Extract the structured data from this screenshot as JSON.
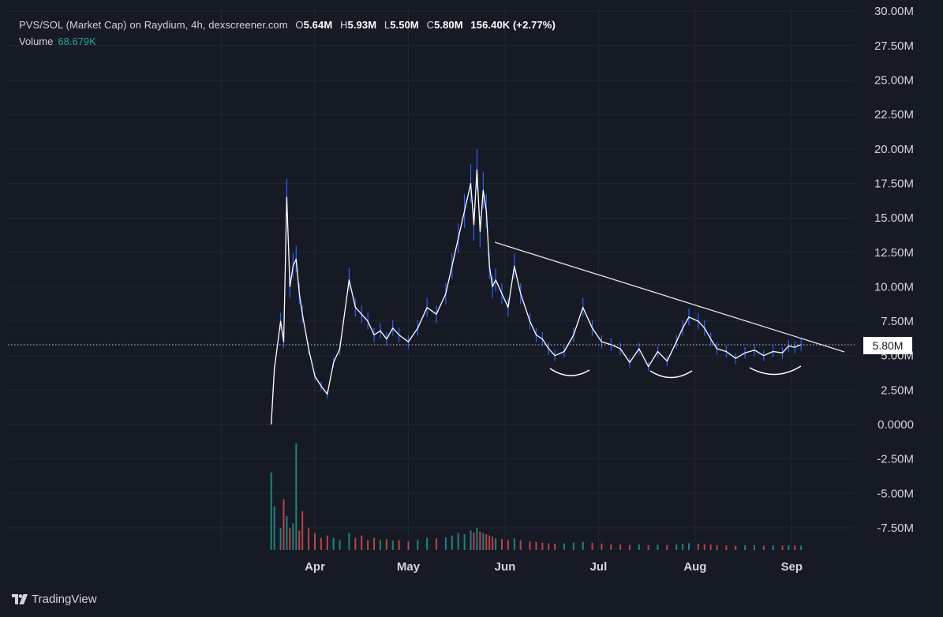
{
  "header": {
    "symbol": "PVS/SOL (Market Cap) on Raydium, 4h, dexscreener.com",
    "open_label": "O",
    "open_value": "5.64M",
    "high_label": "H",
    "high_value": "5.93M",
    "low_label": "L",
    "low_value": "5.50M",
    "close_label": "C",
    "close_value": "5.80M",
    "change": "156.40K (+2.77%)"
  },
  "volume": {
    "label": "Volume",
    "value": "68.679K"
  },
  "price_tag": "5.80M",
  "brand": {
    "name": "TradingView",
    "icon": "tradingview-logo-icon"
  },
  "colors": {
    "background": "#161a25",
    "grid": "#232733",
    "price_line": "#ffffff",
    "price_wick": "#2962ff",
    "volume_up": "#26a69a",
    "volume_down": "#ef5350"
  },
  "chart_data": {
    "type": "line",
    "title": "PVS/SOL (Market Cap) on Raydium, 4h, dexscreener.com",
    "y_tick_labels": [
      "30.00M",
      "27.50M",
      "25.00M",
      "22.50M",
      "20.00M",
      "17.50M",
      "15.00M",
      "12.50M",
      "10.00M",
      "7.50M",
      "5.00M",
      "2.50M",
      "0.0000",
      "-2.50M",
      "-5.00M",
      "-7.50M"
    ],
    "ylim": [
      -9000000,
      30000000
    ],
    "x_tick_labels": [
      "Apr",
      "May",
      "Jun",
      "Jul",
      "Aug",
      "Sep"
    ],
    "x_range": [
      "2024-03-05",
      "2024-09-25"
    ],
    "grid": true,
    "series": [
      {
        "name": "",
        "x": [
          "2024-03-18",
          "2024-03-19",
          "2024-03-21",
          "2024-03-22",
          "2024-03-23",
          "2024-03-24",
          "2024-03-25",
          "2024-03-26",
          "2024-03-27",
          "2024-03-28",
          "2024-03-30",
          "2024-04-01",
          "2024-04-03",
          "2024-04-05",
          "2024-04-07",
          "2024-04-09",
          "2024-04-12",
          "2024-04-14",
          "2024-04-16",
          "2024-04-18",
          "2024-04-20",
          "2024-04-22",
          "2024-04-24",
          "2024-04-26",
          "2024-04-28",
          "2024-05-01",
          "2024-05-04",
          "2024-05-07",
          "2024-05-10",
          "2024-05-13",
          "2024-05-15",
          "2024-05-17",
          "2024-05-19",
          "2024-05-21",
          "2024-05-22",
          "2024-05-23",
          "2024-05-24",
          "2024-05-25",
          "2024-05-26",
          "2024-05-27",
          "2024-05-28",
          "2024-05-29",
          "2024-05-31",
          "2024-06-02",
          "2024-06-04",
          "2024-06-06",
          "2024-06-09",
          "2024-06-11",
          "2024-06-13",
          "2024-06-15",
          "2024-06-17",
          "2024-06-20",
          "2024-06-23",
          "2024-06-26",
          "2024-06-29",
          "2024-07-02",
          "2024-07-05",
          "2024-07-08",
          "2024-07-11",
          "2024-07-14",
          "2024-07-17",
          "2024-07-20",
          "2024-07-23",
          "2024-07-26",
          "2024-07-28",
          "2024-07-30",
          "2024-08-02",
          "2024-08-04",
          "2024-08-06",
          "2024-08-08",
          "2024-08-11",
          "2024-08-14",
          "2024-08-17",
          "2024-08-20",
          "2024-08-23",
          "2024-08-26",
          "2024-08-29",
          "2024-08-31",
          "2024-09-02",
          "2024-09-04"
        ],
        "y": [
          0,
          4000000,
          7500000,
          6000000,
          16500000,
          10000000,
          11500000,
          12000000,
          9500000,
          8000000,
          5500000,
          3500000,
          2800000,
          2200000,
          4500000,
          5500000,
          10500000,
          8500000,
          8000000,
          7500000,
          6500000,
          6800000,
          6200000,
          7000000,
          6500000,
          6000000,
          7000000,
          8500000,
          8000000,
          9500000,
          11500000,
          13500000,
          15500000,
          17500000,
          14500000,
          18500000,
          14000000,
          17000000,
          15500000,
          11500000,
          10000000,
          10500000,
          9500000,
          8500000,
          11500000,
          9500000,
          7500000,
          6500000,
          6200000,
          5500000,
          5000000,
          5300000,
          6500000,
          8500000,
          7000000,
          6000000,
          5800000,
          5500000,
          4500000,
          5500000,
          4200000,
          5300000,
          4600000,
          6000000,
          7000000,
          7800000,
          7500000,
          7000000,
          6200000,
          5500000,
          5300000,
          4800000,
          5200000,
          5400000,
          5000000,
          5300000,
          5200000,
          5700000,
          5600000,
          5800000
        ]
      }
    ],
    "volume_values": [
      3200000,
      1800000,
      900000,
      2100000,
      1400000,
      900000,
      1100000,
      4400000,
      800000,
      1600000,
      900000,
      700000,
      500000,
      600000,
      500000,
      400000,
      700000,
      500000,
      600000,
      400000,
      500000,
      400000,
      450000,
      380000,
      400000,
      350000,
      420000,
      500000,
      480000,
      520000,
      600000,
      700000,
      650000,
      800000,
      720000,
      900000,
      760000,
      700000,
      650000,
      600000,
      550000,
      480000,
      450000,
      420000,
      480000,
      400000,
      350000,
      330000,
      300000,
      280000,
      260000,
      270000,
      300000,
      330000,
      300000,
      260000,
      240000,
      230000,
      210000,
      230000,
      200000,
      220000,
      210000,
      230000,
      260000,
      280000,
      260000,
      240000,
      220000,
      200000,
      190000,
      180000,
      190000,
      200000,
      180000,
      190000,
      185000,
      195000,
      190000,
      180000
    ],
    "annotations": []
  }
}
